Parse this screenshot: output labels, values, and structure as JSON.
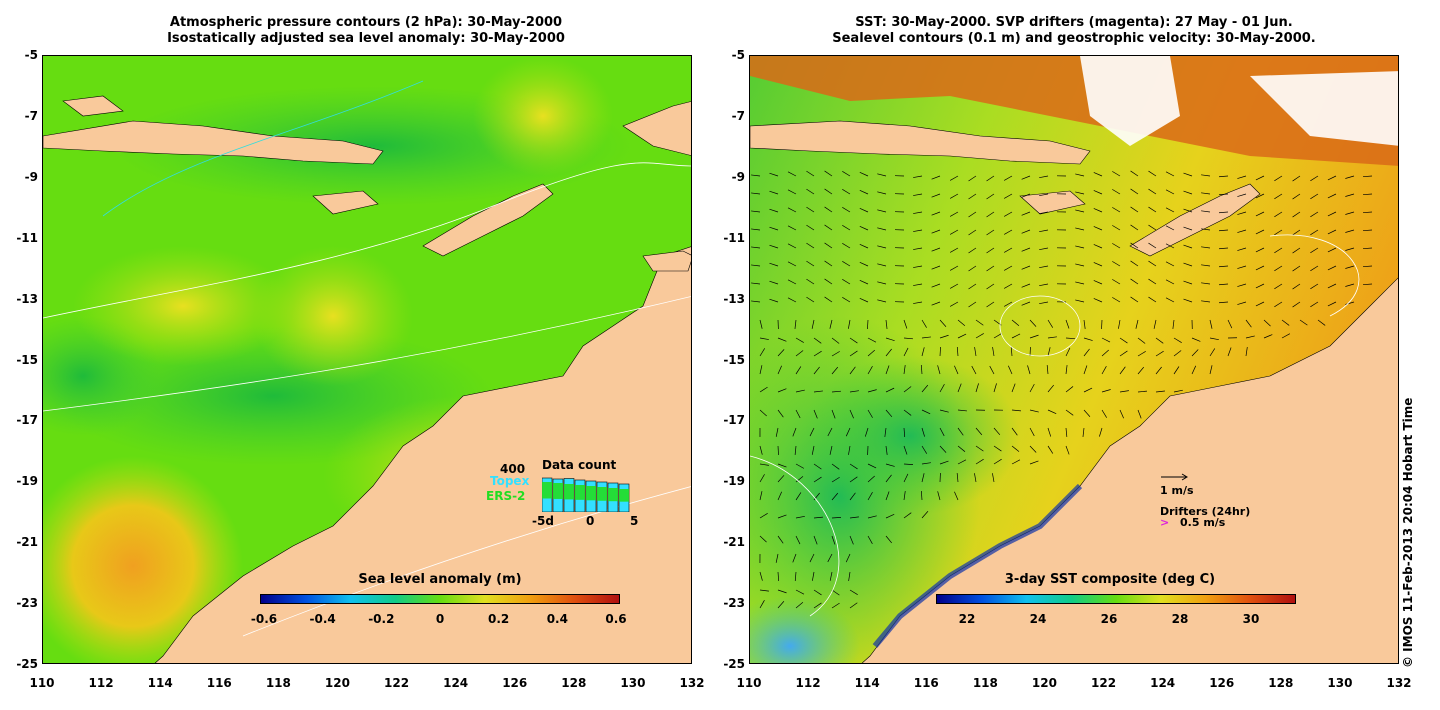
{
  "left_map": {
    "title_line1": "Atmospheric pressure contours (2 hPa): 30-May-2000",
    "title_line2": "Isostatically adjusted sea level anomaly: 30-May-2000",
    "colorbar": {
      "label": "Sea level anomaly (m)",
      "ticks": [
        "-0.6",
        "-0.4",
        "-0.2",
        "0",
        "0.2",
        "0.4",
        "0.6"
      ]
    },
    "inset": {
      "title": "Data count",
      "count": "400",
      "series": [
        "Topex",
        "ERS-2"
      ],
      "x_ticks": [
        "-5d",
        "0",
        "5"
      ],
      "topex_values": [
        340,
        330,
        335,
        320,
        310,
        300,
        290,
        280
      ],
      "ers_values": [
        300,
        290,
        280,
        270,
        260,
        250,
        240,
        230
      ],
      "colors": {
        "topex": "#33e0ff",
        "ers": "#22dd22"
      }
    }
  },
  "right_map": {
    "title_line1": "SST: 30-May-2000. SVP drifters (magenta): 27 May - 01 Jun.",
    "title_line2": "Sealevel contours (0.1 m) and geostrophic velocity: 30-May-2000.",
    "colorbar": {
      "label": "3-day SST composite (deg C)",
      "ticks": [
        "22",
        "24",
        "26",
        "28",
        "30"
      ]
    },
    "velocity_scale": "1 m/s",
    "drifters_label": "Drifters (24hr)",
    "drifter_scale": "0.5 m/s"
  },
  "axes": {
    "y_ticks": [
      "-5",
      "-7",
      "-9",
      "-11",
      "-13",
      "-15",
      "-17",
      "-19",
      "-21",
      "-23",
      "-25"
    ],
    "x_ticks": [
      "110",
      "112",
      "114",
      "116",
      "118",
      "120",
      "122",
      "124",
      "126",
      "128",
      "130",
      "132"
    ],
    "lon_range": [
      110,
      132
    ],
    "lat_range": [
      -25,
      -5
    ]
  },
  "copyright": "© IMOS 11-Feb-2013 20:04 Hobart Time",
  "colors": {
    "land": "#f9c99b",
    "sla_base": "#66dd11",
    "sla_high": "#d8e010",
    "sla_low": "#22cc44",
    "sst_warm": "#ee9a10",
    "sst_mid": "#e0d020",
    "sst_cool": "#44cc33"
  }
}
